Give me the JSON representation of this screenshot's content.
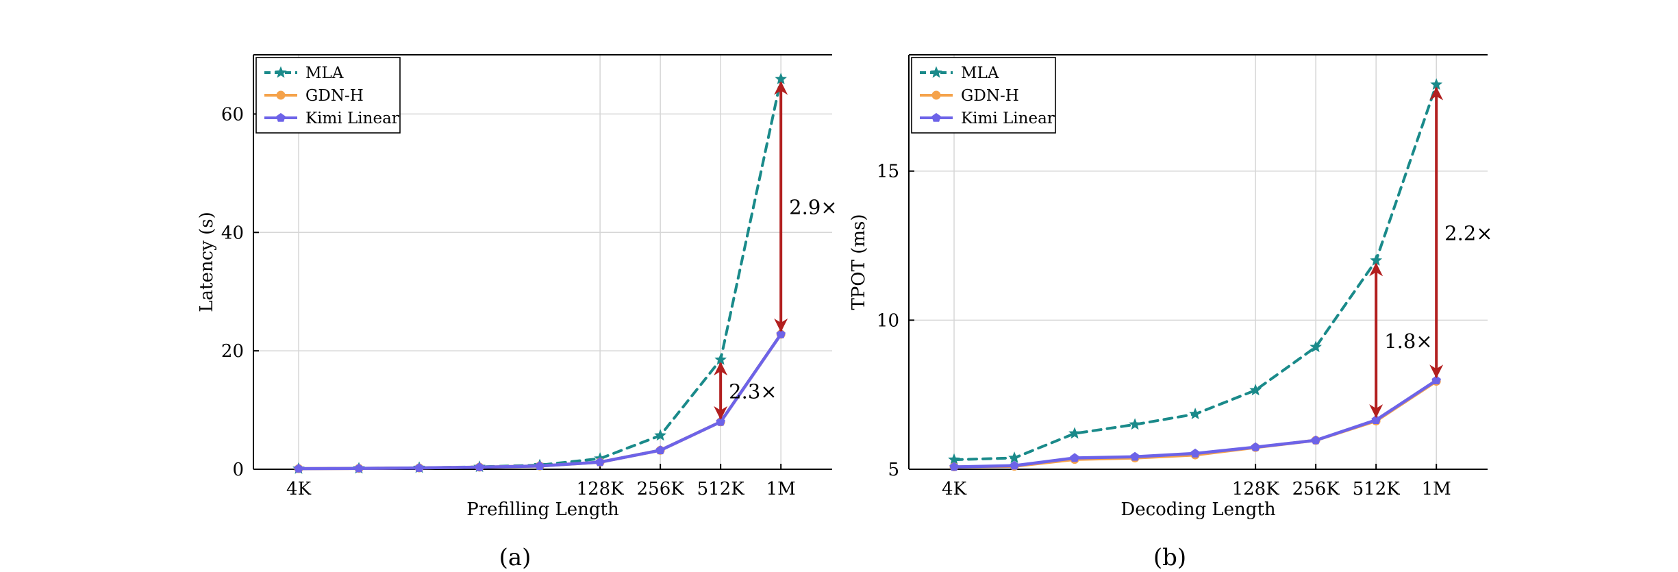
{
  "series_style": {
    "MLA": {
      "color": "#1a8a8a",
      "marker": "star",
      "dash": true
    },
    "GDN-H": {
      "color": "#f5a24a",
      "marker": "circle",
      "dash": false
    },
    "Kimi Linear": {
      "color": "#6d63e8",
      "marker": "pentagon",
      "dash": false
    }
  },
  "annotation_color": "#b21f1f",
  "chart_data": [
    {
      "type": "line",
      "panel_label": "(a)",
      "xlabel": "Prefilling Length",
      "ylabel": "Latency (s)",
      "x": [
        1,
        2,
        3,
        4,
        5,
        6,
        7,
        8,
        9
      ],
      "xticks": [
        {
          "x": 1,
          "label": "4K"
        },
        {
          "x": 6,
          "label": "128K"
        },
        {
          "x": 7,
          "label": "256K"
        },
        {
          "x": 8,
          "label": "512K"
        },
        {
          "x": 9,
          "label": "1M"
        }
      ],
      "xlim": [
        0.25,
        9.85
      ],
      "ylim": [
        0,
        70
      ],
      "yticks": [
        0,
        20,
        40,
        60
      ],
      "grid": true,
      "legend": "top-left",
      "series": [
        {
          "name": "MLA",
          "values": [
            0.1,
            0.15,
            0.25,
            0.4,
            0.7,
            1.8,
            5.7,
            18.5,
            65.9
          ]
        },
        {
          "name": "GDN-H",
          "values": [
            0.1,
            0.14,
            0.22,
            0.35,
            0.55,
            1.2,
            3.2,
            8.0,
            22.8
          ]
        },
        {
          "name": "Kimi Linear",
          "values": [
            0.1,
            0.14,
            0.22,
            0.35,
            0.55,
            1.2,
            3.2,
            8.0,
            22.8
          ]
        }
      ],
      "annotations": [
        {
          "x": 8,
          "y_from": 8.0,
          "y_to": 18.5,
          "label": "2.3×"
        },
        {
          "x": 9,
          "y_from": 22.8,
          "y_to": 65.9,
          "label": "2.9×"
        }
      ]
    },
    {
      "type": "line",
      "panel_label": "(b)",
      "xlabel": "Decoding Length",
      "ylabel": "TPOT (ms)",
      "x": [
        1,
        2,
        3,
        4,
        5,
        6,
        7,
        8,
        9
      ],
      "xticks": [
        {
          "x": 1,
          "label": "4K"
        },
        {
          "x": 6,
          "label": "128K"
        },
        {
          "x": 7,
          "label": "256K"
        },
        {
          "x": 8,
          "label": "512K"
        },
        {
          "x": 9,
          "label": "1M"
        }
      ],
      "xlim": [
        0.25,
        9.85
      ],
      "ylim": [
        5,
        18.9
      ],
      "yticks": [
        5,
        10,
        15
      ],
      "grid": true,
      "legend": "top-left",
      "series": [
        {
          "name": "MLA",
          "values": [
            5.32,
            5.38,
            6.2,
            6.5,
            6.85,
            7.65,
            9.1,
            12.0,
            17.9
          ]
        },
        {
          "name": "GDN-H",
          "values": [
            5.08,
            5.1,
            5.33,
            5.38,
            5.48,
            5.73,
            5.97,
            6.62,
            7.95
          ]
        },
        {
          "name": "Kimi Linear",
          "values": [
            5.08,
            5.12,
            5.38,
            5.42,
            5.53,
            5.74,
            5.97,
            6.65,
            7.98
          ]
        }
      ],
      "annotations": [
        {
          "x": 8,
          "y_from": 6.65,
          "y_to": 12.0,
          "label": "1.8×"
        },
        {
          "x": 9,
          "y_from": 7.98,
          "y_to": 17.9,
          "label": "2.2×"
        }
      ]
    }
  ]
}
